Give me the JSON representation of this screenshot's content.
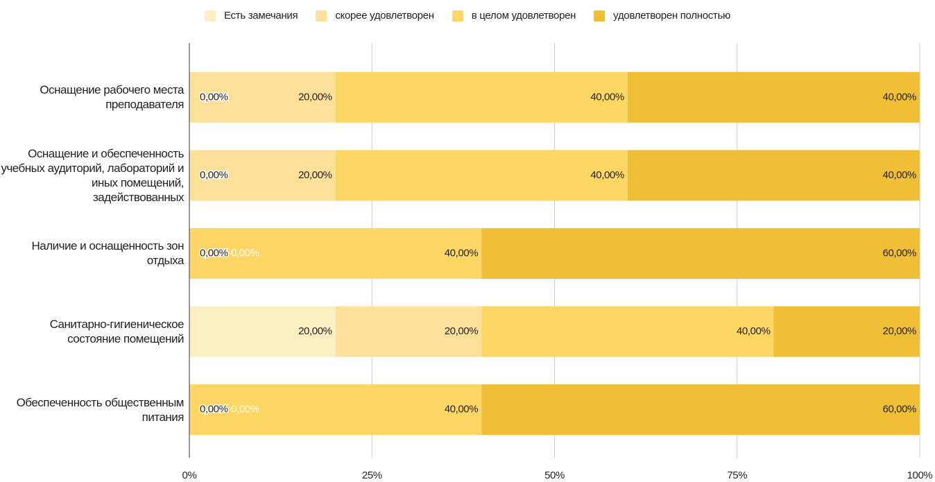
{
  "chart_data": {
    "type": "stacked-bar-horizontal",
    "categories": [
      "Оснащение рабочего места преподавателя",
      "Оснащение и обеспеченность учебных аудиторий, лабораторий и иных помещений, задействованных",
      "Наличие и оснащенность зон отдыха",
      "Санитарно-гигиеническое состояние помещений",
      "Обеспеченность общественным питания"
    ],
    "series": [
      {
        "name": "Есть замечания",
        "color": "#fdefc4",
        "values": [
          0,
          0,
          0,
          20,
          0
        ],
        "value_labels": [
          "0,00%",
          "0,00%",
          "0,00%",
          "20,00%",
          "0,00%"
        ]
      },
      {
        "name": "скорее удовлетворен",
        "color": "#fde19a",
        "values": [
          20,
          20,
          0,
          20,
          0
        ],
        "value_labels": [
          "20,00%",
          "20,00%",
          "0,00%",
          "20,00%",
          "0,00%"
        ]
      },
      {
        "name": "в целом удовлетворен",
        "color": "#fdd663",
        "values": [
          40,
          40,
          40,
          40,
          40
        ],
        "value_labels": [
          "40,00%",
          "40,00%",
          "40,00%",
          "40,00%",
          "40,00%"
        ]
      },
      {
        "name": "удовлетворен полностью",
        "color": "#f0bf35",
        "values": [
          40,
          40,
          60,
          20,
          60
        ],
        "value_labels": [
          "40,00%",
          "40,00%",
          "60,00%",
          "20,00%",
          "60,00%"
        ]
      }
    ],
    "xlim": [
      0,
      100
    ],
    "xticks": [
      {
        "value": 0,
        "label": "0%"
      },
      {
        "value": 25,
        "label": "25%"
      },
      {
        "value": 50,
        "label": "50%"
      },
      {
        "value": 75,
        "label": "75%"
      },
      {
        "value": 100,
        "label": "100%"
      }
    ],
    "grid": true,
    "legend": "top"
  }
}
